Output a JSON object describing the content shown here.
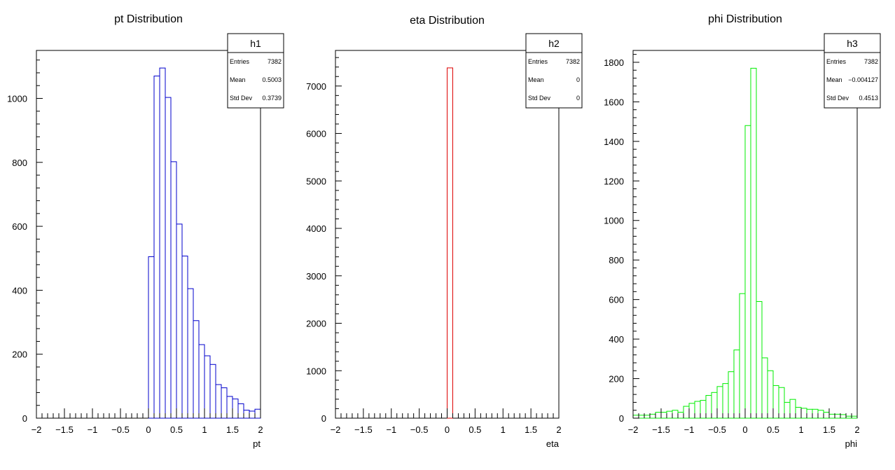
{
  "chart_data": [
    {
      "type": "bar",
      "title": "pt Distribution",
      "xlabel": "pt",
      "ylabel": "",
      "xlim": [
        -2,
        2
      ],
      "ylim": [
        0,
        1150
      ],
      "xticks": [
        "−2",
        "−1.5",
        "−1",
        "−0.5",
        "0",
        "0.5",
        "1",
        "1.5",
        "2"
      ],
      "yticks": [
        0,
        200,
        400,
        600,
        800,
        1000
      ],
      "color": "#0000cc",
      "bin_width": 0.1,
      "bins_x_start": [
        0.0,
        0.1,
        0.2,
        0.3,
        0.4,
        0.5,
        0.6,
        0.7,
        0.8,
        0.9,
        1.0,
        1.1,
        1.2,
        1.3,
        1.4,
        1.5,
        1.6,
        1.7,
        1.8,
        1.9
      ],
      "values": [
        505,
        1070,
        1095,
        1003,
        802,
        607,
        507,
        405,
        305,
        230,
        195,
        168,
        105,
        95,
        68,
        60,
        45,
        25,
        22,
        28
      ],
      "stats": {
        "name": "h1",
        "entries_label": "Entries",
        "entries": "7382",
        "mean_label": "Mean",
        "mean": "0.5003",
        "std_label": "Std Dev",
        "std": "0.3739"
      }
    },
    {
      "type": "bar",
      "title": "eta Distribution",
      "xlabel": "eta",
      "ylabel": "",
      "xlim": [
        -2,
        2
      ],
      "ylim": [
        0,
        7750
      ],
      "xticks": [
        "−2",
        "−1.5",
        "−1",
        "−0.5",
        "0",
        "0.5",
        "1",
        "1.5",
        "2"
      ],
      "yticks": [
        0,
        1000,
        2000,
        3000,
        4000,
        5000,
        6000,
        7000
      ],
      "color": "#dd0000",
      "bin_width": 0.1,
      "bins_x_start": [
        0.0
      ],
      "values": [
        7382
      ],
      "stats": {
        "name": "h2",
        "entries_label": "Entries",
        "entries": "7382",
        "mean_label": "Mean",
        "mean": "0",
        "std_label": "Std Dev",
        "std": "0"
      }
    },
    {
      "type": "bar",
      "title": "phi Distribution",
      "xlabel": "phi",
      "ylabel": "",
      "xlim": [
        -2,
        2
      ],
      "ylim": [
        0,
        1860
      ],
      "xticks": [
        "−2",
        "−1.5",
        "−1",
        "−0.5",
        "0",
        "0.5",
        "1",
        "1.5",
        "2"
      ],
      "yticks": [
        0,
        200,
        400,
        600,
        800,
        1000,
        1200,
        1400,
        1600,
        1800
      ],
      "color": "#00ee00",
      "bin_width": 0.1,
      "bins_x_start": [
        -2.0,
        -1.9,
        -1.8,
        -1.7,
        -1.6,
        -1.5,
        -1.4,
        -1.3,
        -1.2,
        -1.1,
        -1.0,
        -0.9,
        -0.8,
        -0.7,
        -0.6,
        -0.5,
        -0.4,
        -0.3,
        -0.2,
        -0.1,
        0.0,
        0.1,
        0.2,
        0.3,
        0.4,
        0.5,
        0.6,
        0.7,
        0.8,
        0.9,
        1.0,
        1.1,
        1.2,
        1.3,
        1.4,
        1.5,
        1.6,
        1.7,
        1.8,
        1.9
      ],
      "values": [
        15,
        15,
        15,
        20,
        30,
        30,
        35,
        40,
        30,
        60,
        75,
        85,
        90,
        115,
        130,
        160,
        175,
        235,
        345,
        630,
        1480,
        1770,
        590,
        305,
        240,
        165,
        155,
        80,
        95,
        55,
        50,
        45,
        45,
        40,
        30,
        20,
        20,
        18,
        10,
        10
      ],
      "stats": {
        "name": "h3",
        "entries_label": "Entries",
        "entries": "7382",
        "mean_label": "Mean",
        "mean": "−0.004127",
        "std_label": "Std Dev",
        "std": "0.4513"
      }
    }
  ]
}
